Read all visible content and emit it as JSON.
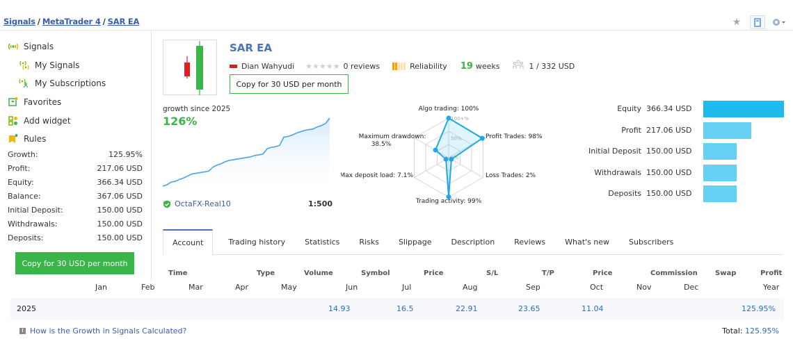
{
  "breadcrumb": {
    "items": [
      "Signals",
      "MetaTrader 4",
      "SAR EA"
    ],
    "separator": "/"
  },
  "top_icons": [
    "star-icon",
    "bookmark-icon",
    "gear-icon"
  ],
  "sidebar": {
    "nav": [
      {
        "label": "Signals",
        "icon": "signals-icon",
        "sub": false
      },
      {
        "label": "My Signals",
        "icon": "my-signals-icon",
        "sub": true
      },
      {
        "label": "My Subscriptions",
        "icon": "my-subscriptions-icon",
        "sub": true
      },
      {
        "label": "Favorites",
        "icon": "favorites-icon",
        "sub": false
      },
      {
        "label": "Add widget",
        "icon": "widget-icon",
        "sub": false
      },
      {
        "label": "Rules",
        "icon": "rules-icon",
        "sub": false
      }
    ],
    "stats": [
      {
        "label": "Growth:",
        "value": "125.95%"
      },
      {
        "label": "Profit:",
        "value": "217.06 USD"
      },
      {
        "label": "Equity:",
        "value": "366.34 USD"
      },
      {
        "label": "Balance:",
        "value": "367.06 USD"
      },
      {
        "label": "Initial Deposit:",
        "value": "150.00 USD"
      },
      {
        "label": "Withdrawals:",
        "value": "150.00 USD"
      },
      {
        "label": "Deposits:",
        "value": "150.00 USD"
      }
    ],
    "copy_button": "Copy for 30 USD per month"
  },
  "signal": {
    "title": "SAR EA",
    "author": "Dian Wahyudi",
    "reviews": "0 reviews",
    "rating_stars": 0,
    "reliability_label": "Reliability",
    "reliability_level": 2,
    "weeks_num": "19",
    "weeks_label": "weeks",
    "subscribers": "1 / 332 USD",
    "copy_button": "Copy for 30 USD per month",
    "colors": {
      "accent": "#3bb449",
      "link": "#3a5ea8",
      "title": "#4a72b5"
    }
  },
  "growth": {
    "label": "growth since 2025",
    "value": "126%",
    "broker": "OctaFX-Real10",
    "leverage": "1:500",
    "curve": [
      0,
      2,
      6,
      7,
      10,
      12,
      15,
      18,
      19,
      20,
      21,
      22,
      28,
      31,
      33,
      36,
      38,
      39,
      40,
      41,
      42,
      43,
      45,
      46,
      47,
      55,
      57,
      58,
      60,
      72,
      73,
      75,
      78,
      80,
      82,
      83,
      84,
      87,
      89,
      92,
      100
    ]
  },
  "radar": {
    "labels": [
      {
        "name": "Algo trading",
        "text": "Algo trading: 100%",
        "value": 100
      },
      {
        "name": "Profit Trades",
        "text": "Profit Trades: 98%",
        "value": 98
      },
      {
        "name": "Loss Trades",
        "text": "Loss Trades: 2%",
        "value": 2
      },
      {
        "name": "Trading activity",
        "text": "Trading activity: 99%",
        "value": 99
      },
      {
        "name": "Max deposit load",
        "text": "Max deposit load: 7.1%",
        "value": 7.1
      },
      {
        "name": "Maximum drawdown",
        "text_line1": "Maximum drawdown:",
        "text_line2": "38.5%",
        "value": 38.5
      }
    ],
    "ring_labels": [
      "100+%",
      "50%",
      "0%"
    ]
  },
  "summary_bars": [
    {
      "label": "Equity",
      "value_text": "366.34 USD",
      "value": 366.34
    },
    {
      "label": "Profit",
      "value_text": "217.06 USD",
      "value": 217.06
    },
    {
      "label": "Initial Deposit",
      "value_text": "150.00 USD",
      "value": 150.0
    },
    {
      "label": "Withdrawals",
      "value_text": "150.00 USD",
      "value": 150.0
    },
    {
      "label": "Deposits",
      "value_text": "150.00 USD",
      "value": 150.0
    }
  ],
  "tabs": [
    "Account",
    "Trading history",
    "Statistics",
    "Risks",
    "Slippage",
    "Description",
    "Reviews",
    "What's new",
    "Subscribers"
  ],
  "active_tab": "Account",
  "columns": [
    "Time",
    "Type",
    "Volume",
    "Symbol",
    "Price",
    "S/L",
    "T/P",
    "Price",
    "Commission",
    "Swap",
    "Profit"
  ],
  "months": [
    "Jan",
    "Feb",
    "Mar",
    "Apr",
    "May",
    "Jun",
    "Jul",
    "Aug",
    "Sep",
    "Oct",
    "Nov",
    "Dec",
    "Year"
  ],
  "year_row": {
    "year": "2025",
    "values": [
      "",
      "",
      "",
      "",
      "",
      "14.93",
      "16.5",
      "22.91",
      "23.65",
      "11.04",
      "",
      ""
    ],
    "year_total": "125.95%"
  },
  "help_link": "How is the Growth in Signals Calculated?",
  "total_label": "Total:",
  "total_value": "125.95%"
}
